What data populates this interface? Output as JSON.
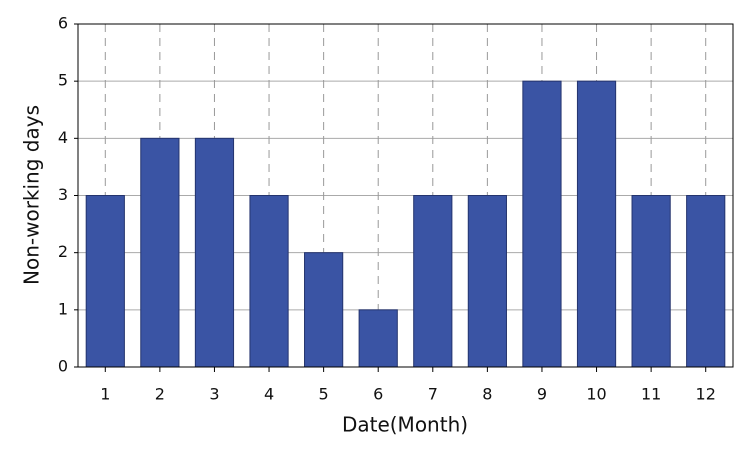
{
  "chart_data": {
    "type": "bar",
    "x_label": "Date(Month)",
    "y_label": "Non-working days",
    "categories": [
      "1",
      "2",
      "3",
      "4",
      "5",
      "6",
      "7",
      "8",
      "9",
      "10",
      "11",
      "12"
    ],
    "values": [
      3,
      4,
      4,
      3,
      2,
      1,
      3,
      3,
      5,
      5,
      3,
      3
    ],
    "color": "#3a54a4",
    "ylim": [
      0,
      6
    ],
    "yticks": [
      0,
      1,
      2,
      3,
      4,
      5,
      6
    ],
    "grid": true
  }
}
